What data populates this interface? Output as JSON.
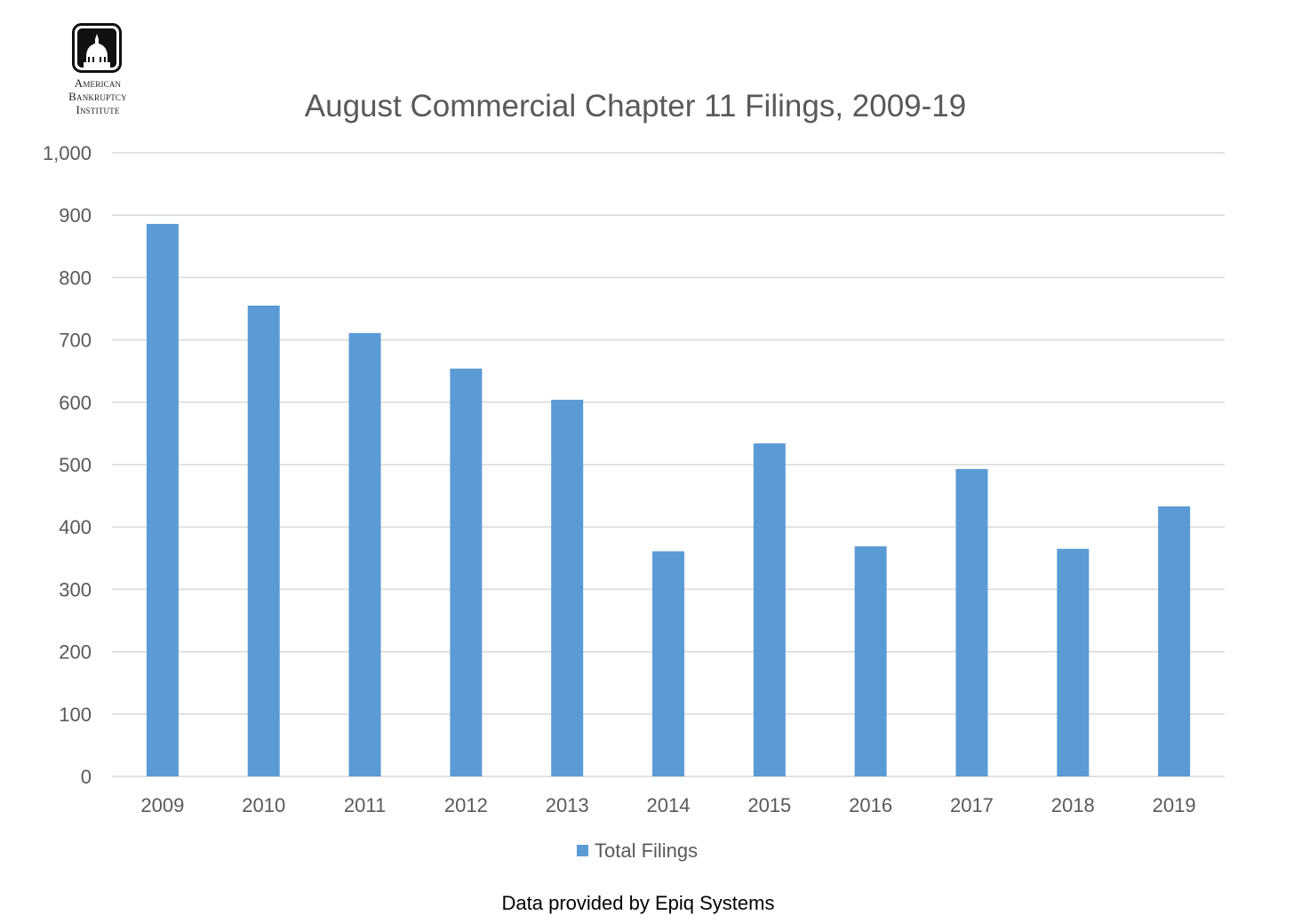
{
  "logo": {
    "lines": [
      "American",
      "Bankruptcy",
      "Institute"
    ]
  },
  "footnote": "Data provided by Epiq Systems",
  "colors": {
    "bar": "#5b9bd5",
    "text": "#595959",
    "grid": "#d9d9d9"
  },
  "chart_data": {
    "type": "bar",
    "title": "August Commercial Chapter 11 Filings, 2009-19",
    "xlabel": "",
    "ylabel": "",
    "categories": [
      "2009",
      "2010",
      "2011",
      "2012",
      "2013",
      "2014",
      "2015",
      "2016",
      "2017",
      "2018",
      "2019"
    ],
    "series": [
      {
        "name": "Total Filings",
        "values": [
          886,
          755,
          711,
          654,
          604,
          361,
          534,
          369,
          493,
          365,
          433
        ]
      }
    ],
    "ylim": [
      0,
      1000
    ],
    "yticks": [
      "0",
      "100",
      "200",
      "300",
      "400",
      "500",
      "600",
      "700",
      "800",
      "900",
      "1,000"
    ],
    "grid": true,
    "legend": "bottom"
  }
}
